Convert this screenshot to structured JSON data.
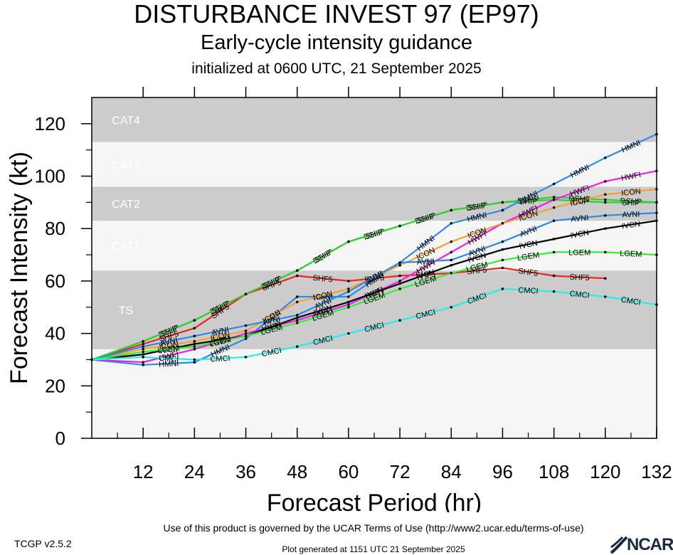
{
  "title": "DISTURBANCE INVEST 97 (EP97)",
  "subtitle": "Early-cycle intensity guidance",
  "init_line": "initialized at 0600 UTC, 21 September 2025",
  "footer": {
    "terms": "Use of this product is governed by the UCAR Terms of Use (http://www2.ucar.edu/terms-of-use)",
    "version": "TCGP v2.5.2",
    "generated": "Plot generated at 1151 UTC   21 September 2025",
    "logo_text": "NCAR"
  },
  "colors": {
    "band_dark": "#cccccc",
    "band_light": "#f5f5f5",
    "band_label": "#ffffff"
  },
  "chart_data": {
    "type": "line",
    "xlabel": "Forecast Period (hr)",
    "ylabel": "Forecast Intensity (kt)",
    "xlim": [
      0,
      132
    ],
    "ylim": [
      0,
      130
    ],
    "xticks": [
      12,
      24,
      36,
      48,
      60,
      72,
      84,
      96,
      108,
      120,
      132
    ],
    "yticks": [
      0,
      20,
      40,
      60,
      80,
      100,
      120
    ],
    "bands": [
      {
        "label": "",
        "from": 0,
        "to": 34,
        "shade": "light"
      },
      {
        "label": "TS",
        "from": 34,
        "to": 64,
        "shade": "dark"
      },
      {
        "label": "CAT1",
        "from": 64,
        "to": 83,
        "shade": "light"
      },
      {
        "label": "CAT2",
        "from": 83,
        "to": 96,
        "shade": "dark"
      },
      {
        "label": "CAT3",
        "from": 96,
        "to": 113,
        "shade": "light"
      },
      {
        "label": "CAT4",
        "from": 113,
        "to": 130,
        "shade": "dark"
      }
    ],
    "series": [
      {
        "name": "SHF5",
        "color": "#e8281e",
        "x": [
          0,
          12,
          24,
          36,
          48,
          60,
          72,
          84,
          96,
          108,
          120
        ],
        "y": [
          30,
          36,
          42,
          55,
          62,
          60,
          62,
          63,
          65,
          62,
          61
        ]
      },
      {
        "name": "DSHP",
        "color": "#33cc33",
        "x": [
          0,
          12,
          24,
          36,
          48,
          60,
          72,
          84,
          96,
          108,
          120,
          132
        ],
        "y": [
          30,
          37,
          45,
          55,
          64,
          75,
          81,
          87,
          90,
          92,
          91,
          90
        ]
      },
      {
        "name": "SHIP",
        "color": "#33cc33",
        "x": [
          0,
          12,
          24,
          36,
          48,
          60,
          72,
          84,
          96,
          108,
          120,
          132
        ],
        "y": [
          30,
          37,
          45,
          55,
          64,
          75,
          81,
          87,
          90,
          91,
          90,
          90
        ]
      },
      {
        "name": "HMNI",
        "color": "#2e8ae6",
        "x": [
          0,
          12,
          24,
          36,
          48,
          60,
          72,
          84,
          96,
          108,
          120,
          132
        ],
        "y": [
          30,
          28,
          29,
          38,
          54,
          54,
          67,
          82,
          87,
          97,
          107,
          116
        ]
      },
      {
        "name": "HWFI",
        "color": "#ee1ee6",
        "x": [
          0,
          12,
          24,
          36,
          48,
          60,
          72,
          84,
          96,
          108,
          120,
          132
        ],
        "y": [
          30,
          29,
          34,
          40,
          45,
          51,
          60,
          71,
          82,
          91,
          98,
          102
        ]
      },
      {
        "name": "ICON",
        "color": "#f5a030",
        "x": [
          0,
          12,
          24,
          36,
          48,
          60,
          72,
          84,
          96,
          108,
          120,
          132
        ],
        "y": [
          30,
          34,
          37,
          41,
          52,
          57,
          66,
          75,
          82,
          88,
          93,
          95
        ]
      },
      {
        "name": "AVNI",
        "color": "#2e8ae6",
        "x": [
          0,
          12,
          24,
          36,
          48,
          60,
          72,
          84,
          96,
          108,
          120,
          132
        ],
        "y": [
          30,
          35,
          39,
          43,
          47,
          56,
          67,
          68,
          75,
          83,
          85,
          86
        ]
      },
      {
        "name": "IVCN",
        "color": "#000000",
        "x": [
          0,
          12,
          24,
          36,
          48,
          60,
          72,
          84,
          96,
          108,
          120,
          132
        ],
        "y": [
          30,
          32,
          36,
          39,
          46,
          52,
          59,
          66,
          72,
          76,
          80,
          83
        ]
      },
      {
        "name": "LGEM",
        "color": "#33ee33",
        "x": [
          0,
          12,
          24,
          36,
          48,
          60,
          72,
          84,
          96,
          108,
          120,
          132
        ],
        "y": [
          30,
          33,
          35,
          39,
          44,
          50,
          57,
          63,
          68,
          71,
          71,
          70
        ]
      },
      {
        "name": "CMCI",
        "color": "#22eeee",
        "x": [
          0,
          12,
          24,
          36,
          48,
          60,
          72,
          84,
          96,
          108,
          120,
          132
        ],
        "y": [
          30,
          31,
          30,
          31,
          35,
          40,
          45,
          50,
          57,
          56,
          54,
          51
        ]
      }
    ]
  }
}
